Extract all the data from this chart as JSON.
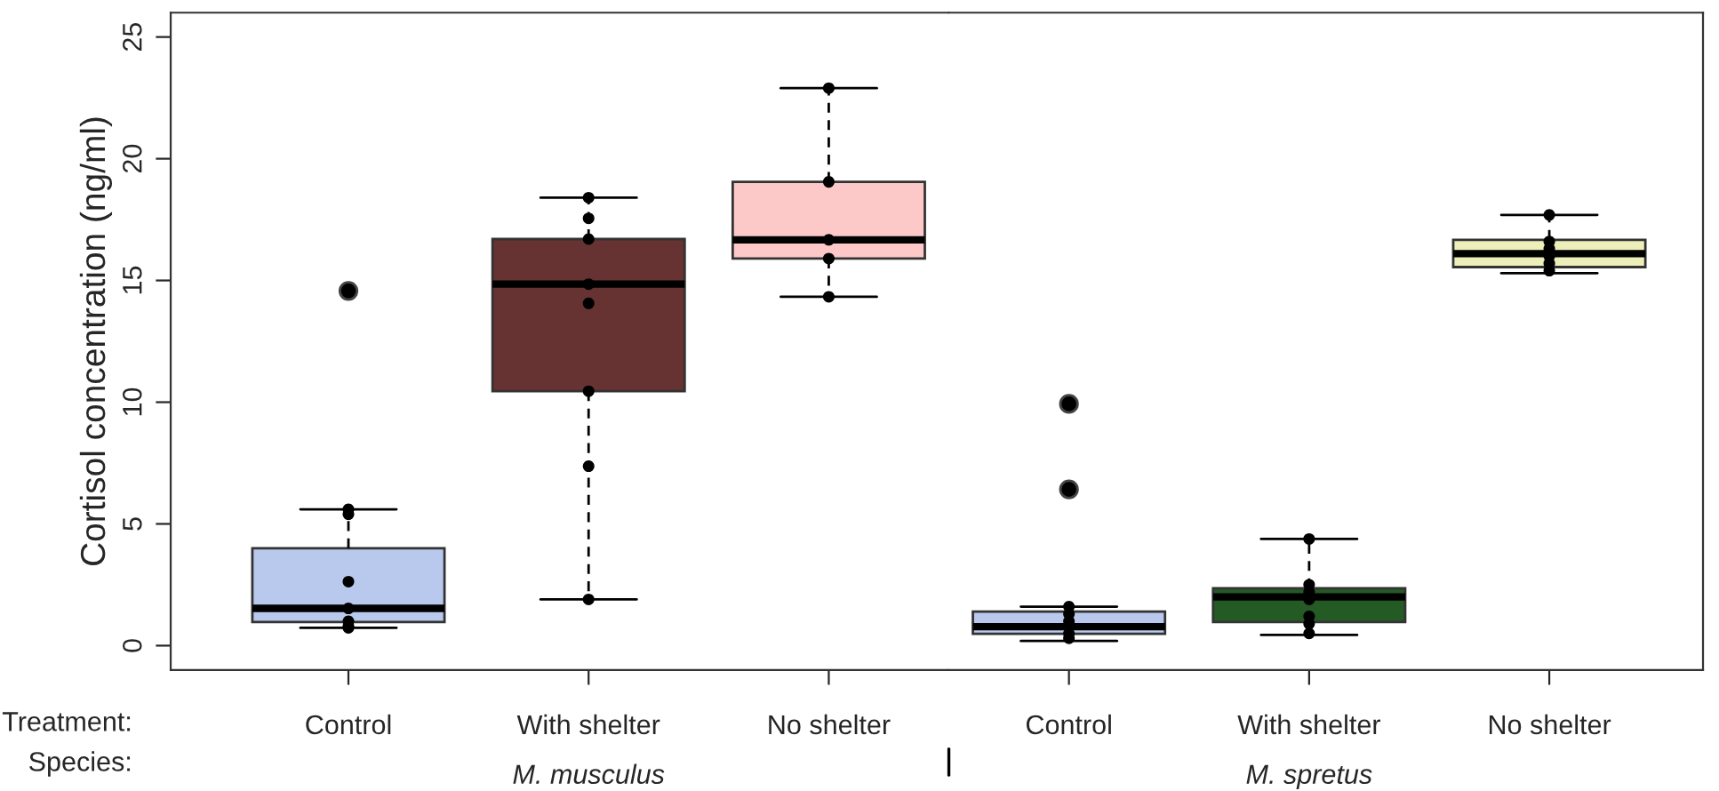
{
  "chart_data": [
    {
      "type": "box",
      "ylabel": "Cortisol concentration (ng/ml)",
      "xlabel": "M. musculus",
      "categories": [
        "Control",
        "With shelter",
        "No shelter"
      ],
      "colors": [
        "#b9c9ed",
        "#673232",
        "#fdc8c8"
      ],
      "boxes": [
        {
          "low": 0.73,
          "q1": 0.97,
          "median": 1.53,
          "q3": 4.0,
          "high": 5.6,
          "outliers": [
            14.57
          ]
        },
        {
          "low": 1.9,
          "q1": 10.45,
          "median": 14.85,
          "q3": 16.7,
          "high": 18.4
        },
        {
          "low": 14.33,
          "q1": 15.9,
          "median": 16.67,
          "q3": 19.05,
          "high": 22.9
        }
      ],
      "series": [
        {
          "type": "scatter",
          "color": "#000000",
          "x": [
            "Control",
            "Control",
            "Control",
            "Control",
            "Control",
            "Control",
            "Control",
            "With shelter",
            "With shelter",
            "With shelter",
            "With shelter",
            "With shelter",
            "With shelter",
            "With shelter",
            "With shelter",
            "No shelter",
            "No shelter",
            "No shelter",
            "No shelter",
            "No shelter"
          ],
          "values": [
            5.6,
            5.4,
            2.63,
            1.53,
            1.0,
            0.8,
            0.73,
            18.4,
            17.55,
            16.7,
            14.85,
            14.06,
            10.45,
            7.37,
            1.9,
            22.9,
            19.05,
            16.67,
            15.9,
            14.33
          ]
        }
      ],
      "ylim": [
        -1,
        26
      ],
      "yticks": [
        0,
        5,
        10,
        15,
        20,
        25
      ],
      "marker": "circle",
      "annotations": [
        "Treatment:",
        "Species:"
      ]
    },
    {
      "type": "box",
      "xlabel": "M. spretus",
      "categories": [
        "Control",
        "With shelter",
        "No shelter"
      ],
      "colors": [
        "#b9c9ed",
        "#245a24",
        "#eeeebb"
      ],
      "boxes": [
        {
          "low": 0.19,
          "q1": 0.49,
          "median": 0.78,
          "q3": 1.4,
          "high": 1.6,
          "outliers": [
            9.93,
            6.42
          ]
        },
        {
          "low": 0.44,
          "q1": 0.97,
          "median": 2.0,
          "q3": 2.36,
          "high": 4.38
        },
        {
          "low": 15.3,
          "q1": 15.55,
          "median": 16.1,
          "q3": 16.67,
          "high": 17.69
        }
      ],
      "series": [
        {
          "type": "scatter",
          "color": "#000000",
          "x": [
            "Control",
            "Control",
            "Control",
            "Control",
            "Control",
            "With shelter",
            "With shelter",
            "With shelter",
            "With shelter",
            "With shelter",
            "With shelter",
            "With shelter",
            "No shelter",
            "No shelter",
            "No shelter",
            "No shelter",
            "No shelter",
            "No shelter"
          ],
          "values": [
            1.6,
            1.3,
            1.0,
            0.5,
            0.3,
            4.38,
            2.5,
            2.2,
            1.9,
            1.2,
            0.9,
            0.5,
            17.69,
            16.6,
            16.3,
            16.0,
            15.7,
            15.4
          ]
        }
      ],
      "ylim": [
        -1,
        26
      ],
      "yticks": [
        0,
        5,
        10,
        15,
        20,
        25
      ],
      "tick_labels": "x",
      "marker": "circle"
    }
  ]
}
